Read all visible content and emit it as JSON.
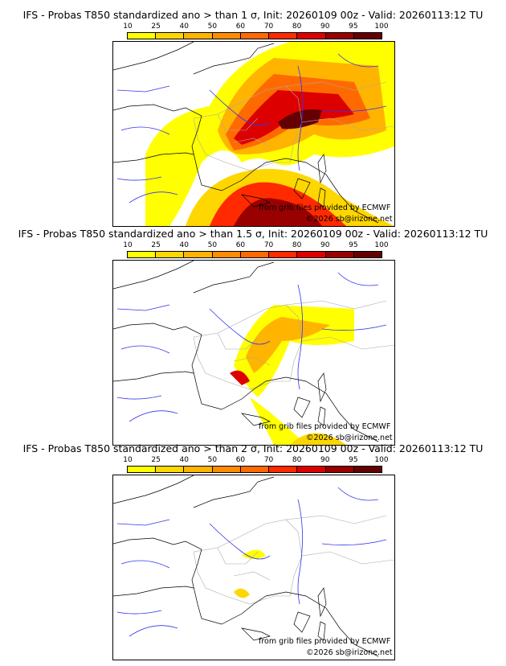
{
  "panels": [
    {
      "title": "IFS - Probas T850  standardized ano > than 1 σ, Init: 20260109 00z - Valid: 20260113:12 TU"
    },
    {
      "title": "IFS - Probas T850  standardized ano > than 1.5 σ, Init: 20260109 00z - Valid: 20260113:12 TU"
    },
    {
      "title": "IFS - Probas T850  standardized ano > than 2 σ, Init: 20260109 00z - Valid: 20260113:12 TU"
    }
  ],
  "colorbar": {
    "ticks": [
      "10",
      "25",
      "40",
      "50",
      "60",
      "70",
      "80",
      "90",
      "95",
      "100"
    ],
    "colors": [
      "#ffff00",
      "#ffd700",
      "#ffb400",
      "#ff8c00",
      "#ff6a00",
      "#ff2a00",
      "#dd0000",
      "#990000",
      "#640000"
    ]
  },
  "credits": {
    "source": "from grib files provided by ECMWF",
    "copyright": "©2026 sb@irizone.net"
  }
}
